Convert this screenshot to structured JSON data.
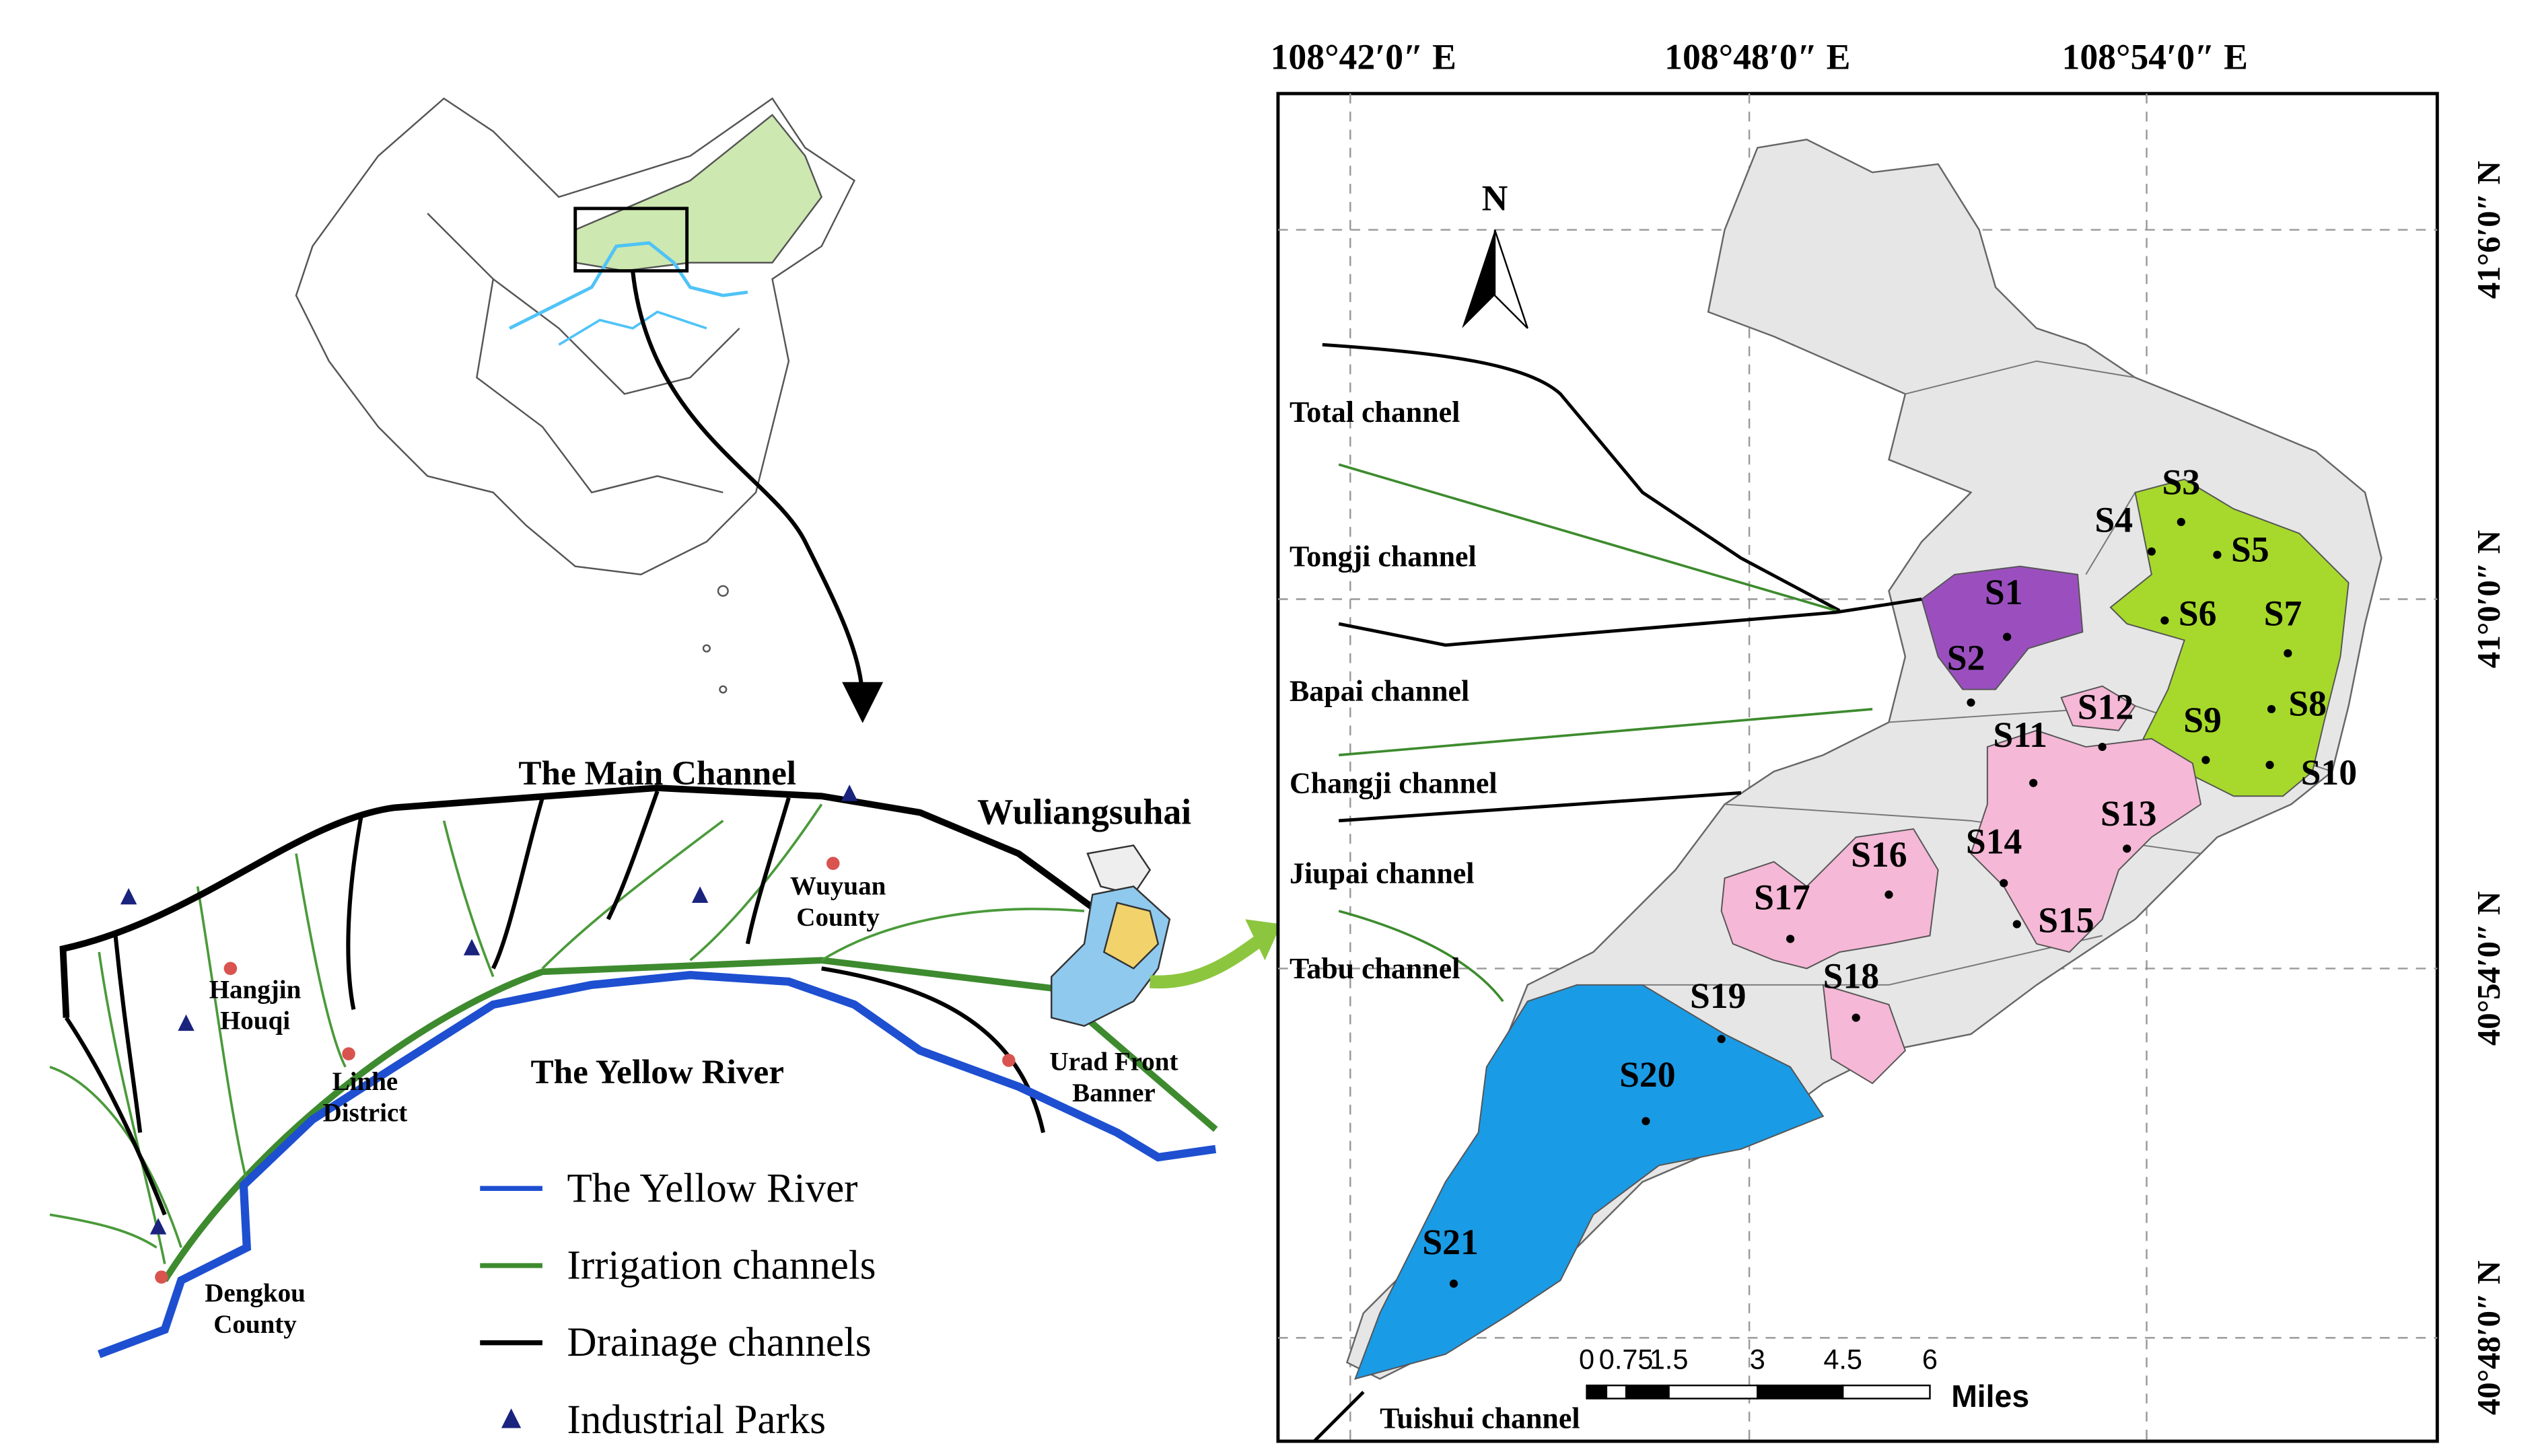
{
  "regional_map": {
    "main_channel": "The Main Channel",
    "lake": "Wuliangsuhai",
    "yellow_river": "The Yellow River",
    "places": [
      {
        "name": [
          "Hangjin",
          "Houqi"
        ]
      },
      {
        "name": [
          "Wuyuan",
          "County"
        ]
      },
      {
        "name": [
          "Linhe",
          "District"
        ]
      },
      {
        "name": [
          "Urad Front",
          "Banner"
        ]
      },
      {
        "name": [
          "Dengkou",
          "County"
        ]
      }
    ],
    "legend": [
      "The Yellow River",
      "Irrigation channels",
      "Drainage channels",
      "Industrial Parks"
    ]
  },
  "lake_map": {
    "north": "N",
    "longitudes": [
      "108°42′0″ E",
      "108°48′0″ E",
      "108°54′0″ E"
    ],
    "latitudes": [
      "41°6′0″ N",
      "41°0′0″ N",
      "40°54′0″ N",
      "40°48′0″ N"
    ],
    "channels": [
      "Total channel",
      "Tongji channel",
      "Bapai channel",
      "Changji channel",
      "Jiupai channel",
      "Tabu channel",
      "Tuishui channel"
    ],
    "sites": [
      "S1",
      "S2",
      "S3",
      "S4",
      "S5",
      "S6",
      "S7",
      "S8",
      "S9",
      "S10",
      "S11",
      "S12",
      "S13",
      "S14",
      "S15",
      "S16",
      "S17",
      "S18",
      "S19",
      "S20",
      "S21"
    ],
    "scale": {
      "ticks": [
        "0",
        "0.75",
        "1.5",
        "3",
        "4.5",
        "6"
      ],
      "unit": "Miles"
    }
  }
}
